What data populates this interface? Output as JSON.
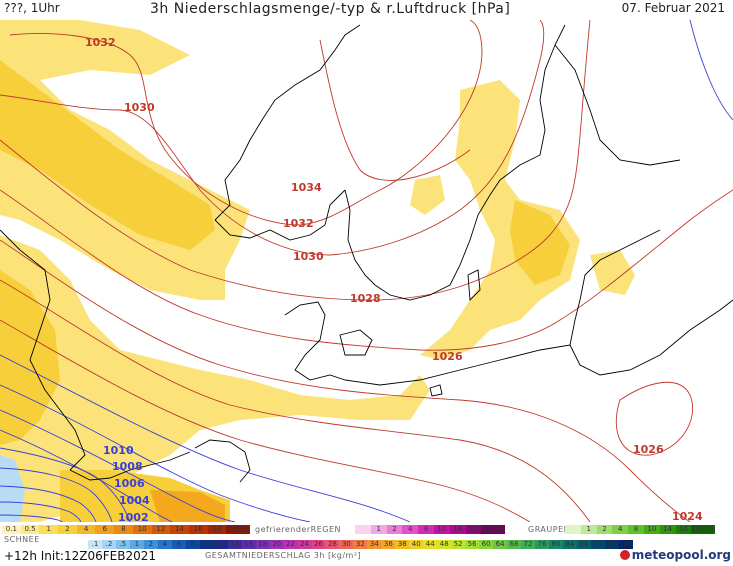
{
  "header": {
    "left": "???, 1Uhr",
    "title": "3h Niederschlagsmenge/-typ & r.Luftdruck [hPa]",
    "date": "07. Februar 2021"
  },
  "footer": {
    "run": "+12h Init:12Z06FEB2021",
    "brand": "meteopool",
    "brand_suffix": ".org"
  },
  "legend": {
    "rain_cap": "",
    "snow_cap": "SCHNEE",
    "freezing_cap": "gefrierenderREGEN",
    "graupel_cap": "GRAUPEL",
    "total_cap": "GESAMTNIEDERSCHLAG 3h [kg/m²]",
    "rain": [
      "0.1",
      "0.5",
      "1",
      "2",
      "4",
      "6",
      "8",
      "10",
      "12",
      "14",
      "16",
      "18",
      "2025+"
    ],
    "snow": [
      ".1",
      ".2",
      ".5",
      "1",
      "2",
      "4",
      "6",
      "8",
      "10",
      "12",
      "14",
      "16",
      "18",
      "20",
      "22",
      "24",
      "26",
      "28",
      "30",
      "32",
      "34",
      "36",
      "38",
      "40",
      "44",
      "48",
      "52",
      "56",
      "60",
      "64",
      "68",
      "72",
      "76",
      "80",
      "84",
      "88",
      "92",
      "96",
      "100"
    ],
    "freezing": [
      "",
      "1",
      "2",
      "4",
      "8",
      "10",
      "14",
      "16",
      "2025+"
    ],
    "graupel": [
      "",
      "1",
      "2",
      "4",
      "8",
      "10",
      "14",
      "16",
      "2025+"
    ]
  },
  "isobars": {
    "labels": [
      "1032",
      "1030",
      "1034",
      "1032",
      "1030",
      "1028",
      "1026",
      "1026",
      "1024",
      "1010",
      "1008",
      "1006",
      "1004",
      "1002"
    ]
  },
  "colors": {
    "precip_light": "#fbe37a",
    "precip_mid": "#f7cf3a",
    "precip_heavy": "#f3a81e",
    "snow": "#b9dcf5",
    "isobar_high": "#c0392b",
    "isobar_low": "#3b3fd6",
    "coast": "#000000"
  }
}
